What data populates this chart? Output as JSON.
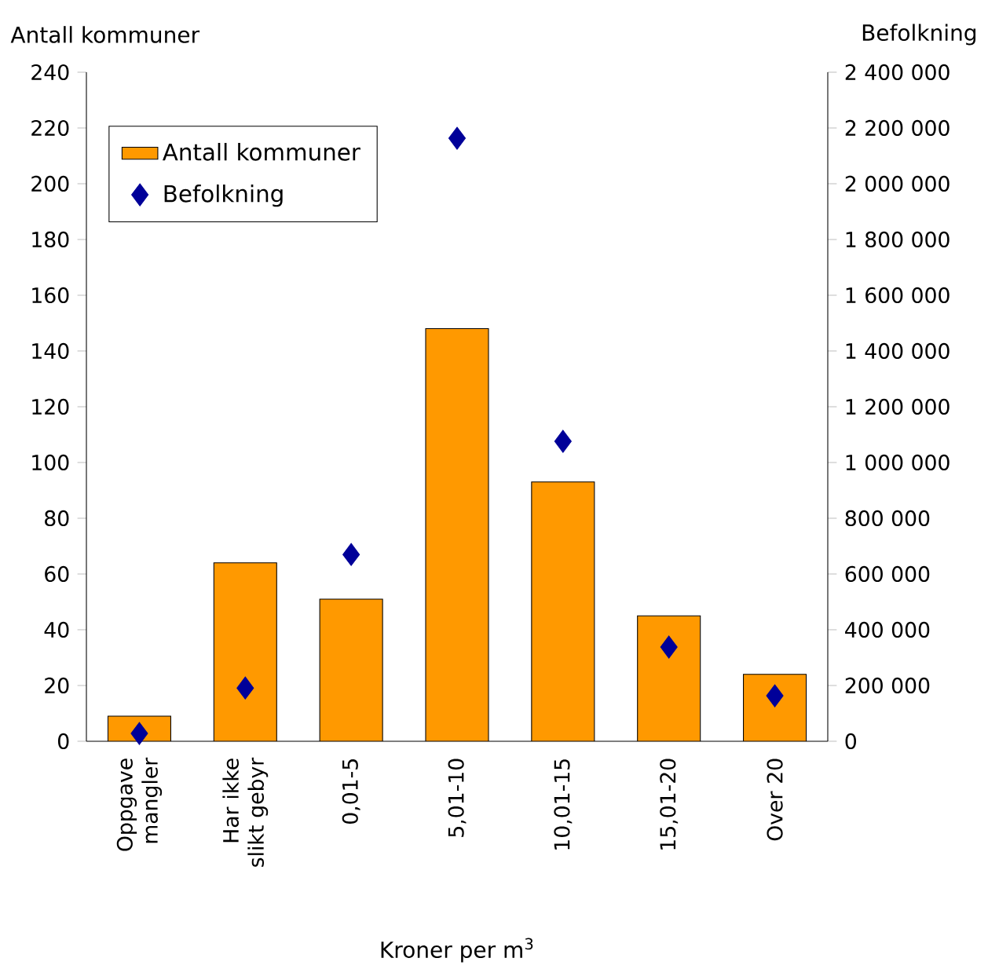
{
  "chart_data": {
    "type": "bar",
    "ylabel": "Antall kommuner",
    "y2label": "Befolkning",
    "xlabel": "Kroner per m$^{3}$",
    "categories": [
      "Oppgave mangler",
      "Har ikke slikt gebyr",
      "0,01-5",
      "5,01-10",
      "10,01-15",
      "15,01-20",
      "Over 20"
    ],
    "series": [
      {
        "name": "Antall kommuner",
        "color": "#ff9900",
        "values": [
          9,
          64,
          51,
          148,
          93,
          45,
          24
        ]
      },
      {
        "name": "Befolkning",
        "type": "scatter",
        "axis": "y2",
        "marker": "diamond",
        "color": "#000099",
        "values": [
          28000,
          191000,
          670000,
          2163000,
          1076000,
          338000,
          163000
        ]
      }
    ],
    "ylim": [
      0,
      240
    ],
    "yticks": [
      0,
      20,
      40,
      60,
      80,
      100,
      120,
      140,
      160,
      180,
      200,
      220,
      240
    ],
    "y2lim": [
      0,
      2400000
    ],
    "y2ticks": [
      0,
      {
        "value": 200000,
        "label": "200 000"
      },
      {
        "value": 400000,
        "label": "400 000"
      },
      {
        "value": 600000,
        "label": "600 000"
      },
      {
        "value": 800000,
        "label": "800 000"
      },
      {
        "value": 1000000,
        "label": "1 000 000"
      },
      {
        "value": 1200000,
        "label": "1 200 000"
      },
      {
        "value": 1400000,
        "label": "1 400 000"
      },
      {
        "value": 1600000,
        "label": "1 600 000"
      },
      {
        "value": 1800000,
        "label": "1 800 000"
      },
      {
        "value": 2000000,
        "label": "2 000 000"
      },
      {
        "value": 2200000,
        "label": "2 200 000"
      },
      {
        "value": 2400000,
        "label": "2 400 000"
      }
    ],
    "grid": false,
    "legend": "top left"
  }
}
